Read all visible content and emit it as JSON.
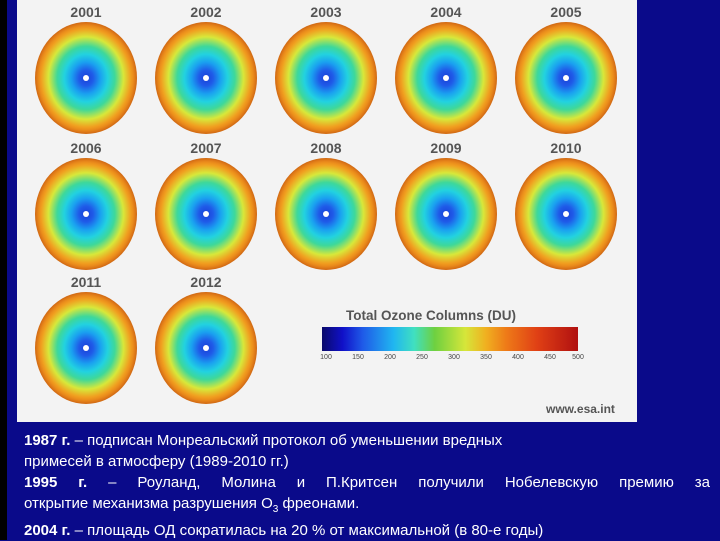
{
  "globes": [
    {
      "year": "2001"
    },
    {
      "year": "2002"
    },
    {
      "year": "2003"
    },
    {
      "year": "2004"
    },
    {
      "year": "2005"
    },
    {
      "year": "2006"
    },
    {
      "year": "2007"
    },
    {
      "year": "2008"
    },
    {
      "year": "2009"
    },
    {
      "year": "2010"
    },
    {
      "year": "2011"
    },
    {
      "year": "2012"
    }
  ],
  "legend": {
    "title": "Total Ozone Columns (DU)",
    "ticks": [
      "100",
      "150",
      "200",
      "250",
      "300",
      "350",
      "400",
      "450",
      "500"
    ]
  },
  "source": "www.esa.int",
  "caption": {
    "line1_year": "1987 г.",
    "line1_text": " – подписан Монреальский протокол об уменьшении вредных",
    "line2_text": "примесей в атмосферу (1989-2010 гг.)",
    "line3_year": "1995 г.",
    "line3_text": " – Роуланд, Молина и П.Критсен получили Нобелевскую премию за",
    "line4_text_a": "открытие механизма разрушения О",
    "line4_sub": "3",
    "line4_text_b": " фреонами.",
    "line5_year": "2004 г.",
    "line5_text": " – площадь ОД сократилась на 20 % от максимальной (в 80-е годы)"
  }
}
